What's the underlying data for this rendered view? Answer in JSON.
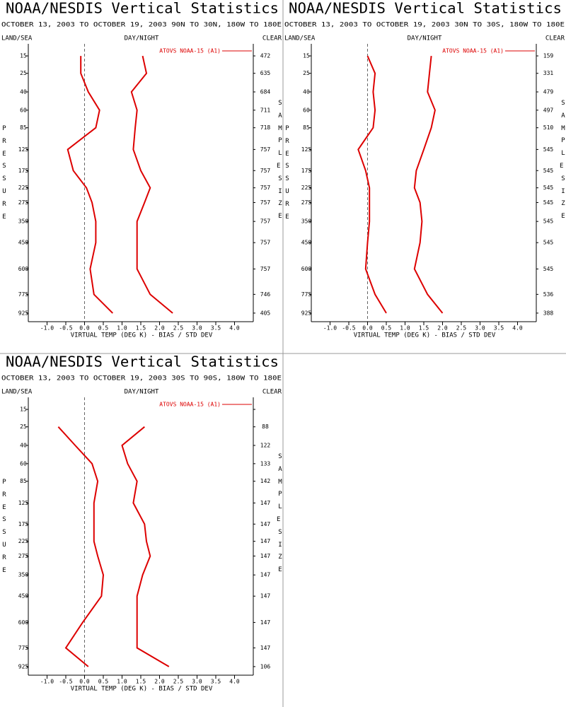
{
  "chart_data": [
    {
      "type": "line",
      "title": "NOAA/NESDIS Vertical Statistics",
      "subtitle": "OCTOBER 13, 2003 TO OCTOBER 19, 2003  90N TO 30N, 180W TO 180E",
      "left_header": "LAND/SEA",
      "center_header": "DAY/NIGHT",
      "right_header": "CLEAR",
      "ylabel": "PRESSURE",
      "y2label": "SAMPLE SIZE",
      "xlabel": "VIRTUAL TEMP (DEG K) - BIAS / STD DEV",
      "y": [
        15,
        25,
        40,
        60,
        85,
        125,
        175,
        225,
        275,
        350,
        450,
        600,
        775,
        925
      ],
      "ylim": [
        10,
        1000
      ],
      "xlim": [
        -1.5,
        4.5
      ],
      "xticks": [
        {
          "value": -1,
          "label": "-1.0"
        },
        -0.5,
        {
          "value": 0,
          "label": "0.0"
        },
        0.5,
        {
          "value": 1,
          "label": "1.0"
        },
        1.5,
        {
          "value": 2,
          "label": "2.0"
        },
        2.5,
        {
          "value": 3,
          "label": "3.0"
        },
        3.5,
        {
          "value": 4,
          "label": "4.0"
        }
      ],
      "series": [
        {
          "name": "ATOVS NOAA-15 (A1)",
          "color": "#dd0000",
          "bias": [
            -0.1,
            -0.1,
            0.1,
            0.4,
            0.3,
            -0.45,
            -0.3,
            0.05,
            0.2,
            0.3,
            0.3,
            0.15,
            0.25,
            0.75
          ],
          "std_dev": [
            1.55,
            1.65,
            1.25,
            1.4,
            1.35,
            1.3,
            1.5,
            1.75,
            1.6,
            1.4,
            1.4,
            1.4,
            1.75,
            2.35
          ]
        }
      ],
      "sample_size": [
        472,
        635,
        684,
        711,
        718,
        757,
        757,
        757,
        757,
        757,
        757,
        757,
        746,
        405
      ]
    },
    {
      "type": "line",
      "title": "NOAA/NESDIS Vertical Statistics",
      "subtitle": "OCTOBER 13, 2003 TO OCTOBER 19, 2003  30N TO 30S, 180W TO 180E",
      "left_header": "LAND/SEA",
      "center_header": "DAY/NIGHT",
      "right_header": "CLEAR",
      "ylabel": "PRESSURE",
      "y2label": "SAMPLE SIZE",
      "xlabel": "VIRTUAL TEMP (DEG K) - BIAS / STD DEV",
      "y": [
        15,
        25,
        40,
        60,
        85,
        125,
        175,
        225,
        275,
        350,
        450,
        600,
        775,
        925
      ],
      "ylim": [
        10,
        1000
      ],
      "xlim": [
        -1.5,
        4.5
      ],
      "xticks": [
        {
          "value": -1,
          "label": "-1.0"
        },
        -0.5,
        {
          "value": 0,
          "label": "0.0"
        },
        0.5,
        {
          "value": 1,
          "label": "1.0"
        },
        1.5,
        {
          "value": 2,
          "label": "2.0"
        },
        2.5,
        {
          "value": 3,
          "label": "3.0"
        },
        3.5,
        {
          "value": 4,
          "label": "4.0"
        }
      ],
      "series": [
        {
          "name": "ATOVS NOAA-15 (A1)",
          "color": "#dd0000",
          "bias": [
            0.0,
            0.2,
            0.15,
            0.2,
            0.15,
            -0.25,
            -0.05,
            0.05,
            0.05,
            0.05,
            0.0,
            -0.05,
            0.2,
            0.5
          ],
          "std_dev": [
            1.7,
            1.65,
            1.6,
            1.8,
            1.7,
            1.5,
            1.3,
            1.25,
            1.4,
            1.45,
            1.4,
            1.25,
            1.6,
            2.0
          ]
        }
      ],
      "sample_size": [
        159,
        331,
        479,
        497,
        510,
        545,
        545,
        545,
        545,
        545,
        545,
        545,
        536,
        388
      ]
    },
    {
      "type": "line",
      "title": "NOAA/NESDIS Vertical Statistics",
      "subtitle": "OCTOBER 13, 2003 TO OCTOBER 19, 2003  30S TO 90S, 180W TO 180E",
      "left_header": "LAND/SEA",
      "center_header": "DAY/NIGHT",
      "right_header": "CLEAR",
      "ylabel": "PRESSURE",
      "y2label": "SAMPLE SIZE",
      "xlabel": "VIRTUAL TEMP (DEG K) - BIAS / STD DEV",
      "y": [
        15,
        25,
        40,
        60,
        85,
        125,
        175,
        225,
        275,
        350,
        450,
        600,
        775,
        925
      ],
      "ylim": [
        10,
        1000
      ],
      "xlim": [
        -1.5,
        4.5
      ],
      "xticks": [
        {
          "value": -1,
          "label": "-1.0"
        },
        -0.5,
        {
          "value": 0,
          "label": "0.0"
        },
        0.5,
        {
          "value": 1,
          "label": "1.0"
        },
        1.5,
        {
          "value": 2,
          "label": "2.0"
        },
        2.5,
        {
          "value": 3,
          "label": "3.0"
        },
        3.5,
        {
          "value": 4,
          "label": "4.0"
        }
      ],
      "series": [
        {
          "name": "ATOVS NOAA-15 (A1)",
          "color": "#dd0000",
          "bias": [
            null,
            -0.7,
            -0.25,
            0.2,
            0.35,
            0.25,
            0.25,
            0.25,
            0.35,
            0.5,
            0.45,
            -0.05,
            -0.5,
            0.1
          ],
          "std_dev": [
            null,
            1.6,
            1.0,
            1.15,
            1.4,
            1.3,
            1.6,
            1.65,
            1.75,
            1.55,
            1.4,
            1.4,
            1.4,
            2.25
          ]
        }
      ],
      "sample_size": [
        null,
        88,
        122,
        133,
        142,
        147,
        147,
        147,
        147,
        147,
        147,
        147,
        147,
        106
      ]
    }
  ]
}
